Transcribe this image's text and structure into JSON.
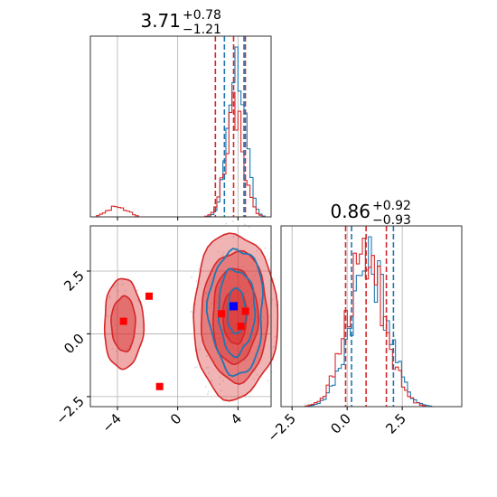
{
  "chart_data": {
    "type": "corner",
    "colors": {
      "series_a": "#1f77b4",
      "series_b": "#d62728",
      "truth": "#ff0000",
      "point_estimate": "#0000ff"
    },
    "parameters": [
      {
        "title_value": "3.71",
        "title_plus": "+0.78",
        "title_minus": "−1.21",
        "range": [
          -5.8,
          6.2
        ],
        "ticks": [
          {
            "v": -4,
            "label": "−4"
          },
          {
            "v": 0,
            "label": "0"
          },
          {
            "v": 4,
            "label": "4"
          }
        ],
        "quantiles_a": [
          3.1,
          4.4
        ],
        "quantiles_b": [
          2.5,
          3.71,
          4.49
        ],
        "hist_a": {
          "center": 3.9,
          "sigma": 0.55,
          "peak": 1.0,
          "secondary": null
        },
        "hist_b": {
          "center": 3.75,
          "sigma": 0.6,
          "peak": 0.6,
          "secondary": {
            "center": -4.0,
            "sigma": 0.6,
            "peak": 0.07
          }
        }
      },
      {
        "title_value": "0.86",
        "title_plus": "+0.92",
        "title_minus": "−0.93",
        "range": [
          -3.0,
          5.2
        ],
        "ticks": [
          {
            "v": -2.5,
            "label": "−2.5"
          },
          {
            "v": 0,
            "label": "0.0"
          },
          {
            "v": 2.5,
            "label": "2.5"
          }
        ],
        "quantiles_a": [
          0.2,
          2.1
        ],
        "quantiles_b": [
          -0.07,
          0.86,
          1.78
        ],
        "hist_a": {
          "center": 1.0,
          "sigma": 0.85,
          "peak": 0.85
        },
        "hist_b": {
          "center": 0.86,
          "sigma": 0.85,
          "peak": 0.88
        }
      }
    ],
    "joint": {
      "blob_main": {
        "cx": 3.8,
        "cy": 0.7,
        "rx_levels": [
          0.8,
          1.5,
          2.2,
          2.8
        ],
        "ry_levels": [
          1.1,
          1.9,
          2.6,
          3.3
        ]
      },
      "blob_left": {
        "cx": -3.6,
        "cy": 0.4,
        "rx_levels": [
          0.8,
          1.3
        ],
        "ry_levels": [
          1.1,
          1.8
        ]
      },
      "truth_points": [
        [
          -3.6,
          0.5
        ],
        [
          -1.9,
          1.5
        ],
        [
          -1.2,
          -2.1
        ],
        [
          2.9,
          0.8
        ],
        [
          4.5,
          0.9
        ],
        [
          4.2,
          0.3
        ]
      ],
      "point_estimate": [
        3.71,
        1.1
      ]
    }
  }
}
